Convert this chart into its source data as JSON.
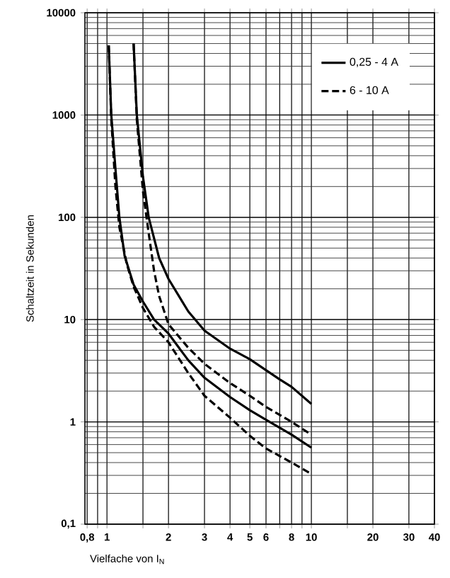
{
  "chart_data": {
    "type": "line",
    "xlabel": "Vielfache von I$_{N}$",
    "ylabel": "Schaltzeit in Sekunden",
    "log": "xy",
    "grid": true,
    "legend": "top right",
    "xlim": [
      0.78,
      40
    ],
    "ylim": [
      0.1,
      10000
    ],
    "xticks": [
      {
        "value": 0.8,
        "label": "0,8"
      },
      {
        "value": 0.9,
        "label": null
      },
      1,
      {
        "value": 1.5,
        "label": null
      },
      2,
      3,
      4,
      5,
      6,
      {
        "value": 7,
        "label": null
      },
      8,
      {
        "value": 9,
        "label": null
      },
      10,
      {
        "value": 15,
        "label": null
      },
      20,
      30,
      40
    ],
    "yticks": [
      {
        "value": 0.1,
        "label": "0,1"
      },
      1,
      10,
      100,
      1000,
      10000
    ],
    "series": [
      {
        "name": "0,25 - 4 A",
        "color": "#000000",
        "line_style": "solid",
        "x": [
          1.35,
          1.4,
          1.5,
          1.6,
          1.8,
          2,
          2.5,
          3,
          4,
          5,
          6,
          7,
          8,
          10
        ],
        "values": [
          5000,
          1000,
          250,
          100,
          40,
          25,
          12,
          7.8,
          5.2,
          4.1,
          3.2,
          2.6,
          2.2,
          1.5
        ]
      },
      {
        "name": "6 - 10 A",
        "color": "#000000",
        "line_style": "dashed",
        "x": [
          1.35,
          1.4,
          1.5,
          1.6,
          1.7,
          1.8,
          2,
          2.5,
          3,
          4,
          5,
          6,
          8,
          10
        ],
        "values": [
          5000,
          900,
          180,
          70,
          30,
          17,
          9,
          5.3,
          3.7,
          2.4,
          1.8,
          1.4,
          1.0,
          0.75
        ]
      },
      {
        "color": "#000000",
        "line_style": "solid",
        "x": [
          1.02,
          1.05,
          1.1,
          1.15,
          1.22,
          1.35,
          1.5,
          1.7,
          2,
          2.5,
          3,
          4,
          5,
          6,
          8,
          10
        ],
        "values": [
          4800,
          1000,
          300,
          100,
          42,
          22,
          15,
          10,
          7.3,
          4,
          2.7,
          1.75,
          1.3,
          1.05,
          0.75,
          0.56
        ]
      },
      {
        "color": "#000000",
        "line_style": "dashed",
        "x": [
          1.02,
          1.05,
          1.1,
          1.15,
          1.25,
          1.35,
          1.5,
          1.7,
          2,
          2.5,
          3,
          4,
          5,
          6,
          8,
          10
        ],
        "values": [
          4800,
          900,
          200,
          80,
          35,
          21,
          13,
          8.5,
          6,
          3,
          1.8,
          1.1,
          0.73,
          0.55,
          0.4,
          0.31
        ]
      }
    ]
  }
}
